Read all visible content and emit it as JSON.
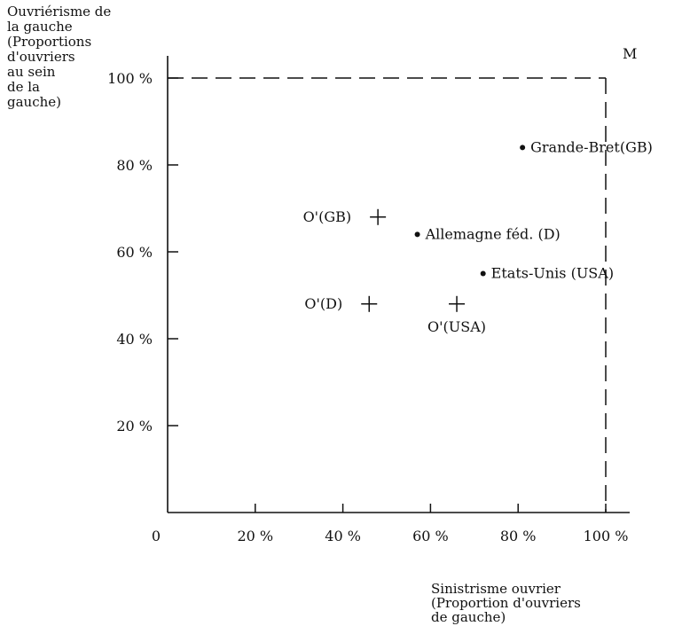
{
  "chart_data": {
    "type": "scatter",
    "ylabel": [
      "Ouvriérisme de",
      "la gauche",
      "(Proportions",
      "d'ouvriers",
      "au sein",
      "de la",
      "gauche)"
    ],
    "xlabel": [
      "Sinistrisme ouvrier",
      "(Proportion d'ouvriers",
      "de gauche)"
    ],
    "xlim": [
      0,
      100
    ],
    "ylim": [
      0,
      100
    ],
    "origin_label": "0",
    "x_ticks": [
      {
        "value": 20,
        "label": "20 %"
      },
      {
        "value": 40,
        "label": "40 %"
      },
      {
        "value": 60,
        "label": "60 %"
      },
      {
        "value": 80,
        "label": "80 %"
      },
      {
        "value": 100,
        "label": "100 %"
      }
    ],
    "y_ticks": [
      {
        "value": 20,
        "label": "20 %"
      },
      {
        "value": 40,
        "label": "40 %"
      },
      {
        "value": 60,
        "label": "60 %"
      },
      {
        "value": 80,
        "label": "80 %"
      },
      {
        "value": 100,
        "label": "100 %"
      }
    ],
    "reference_point": {
      "label": "M",
      "x": 100,
      "y": 100
    },
    "points": [
      {
        "label": "Grande-Bret(GB)",
        "x": 81,
        "y": 84,
        "marker": "dot",
        "label_pos": "right"
      },
      {
        "label": "Allemagne féd. (D)",
        "x": 57,
        "y": 64,
        "marker": "dot",
        "label_pos": "right"
      },
      {
        "label": "Etats-Unis (USA)",
        "x": 72,
        "y": 55,
        "marker": "dot",
        "label_pos": "right"
      },
      {
        "label": "O'(GB)",
        "x": 48,
        "y": 68,
        "marker": "cross",
        "label_pos": "left"
      },
      {
        "label": "O'(D)",
        "x": 46,
        "y": 48,
        "marker": "cross",
        "label_pos": "left"
      },
      {
        "label": "O'(USA)",
        "x": 66,
        "y": 48,
        "marker": "cross",
        "label_pos": "below"
      }
    ]
  }
}
